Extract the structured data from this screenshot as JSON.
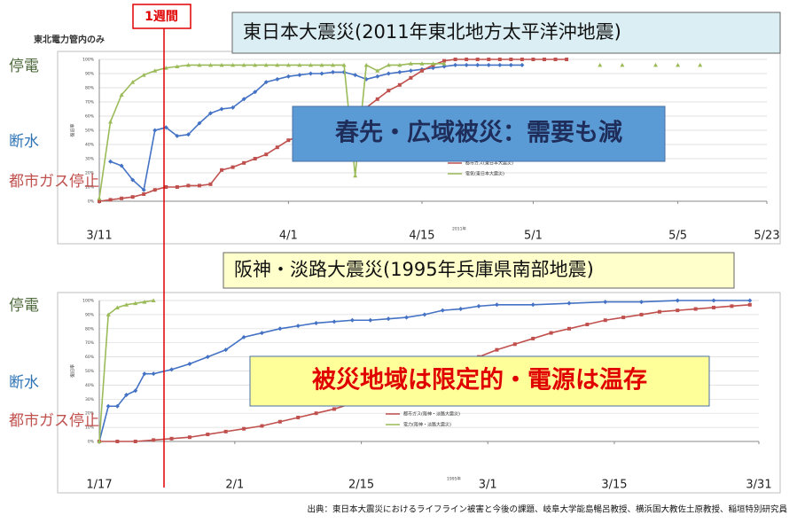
{
  "marker_label": "1週間",
  "source": "出典：東日本大震災におけるライフライン被害と今後の課題、岐阜大学能島暢呂教授、横浜国大教佐土原教授、稲垣特別研究員",
  "chart_data": [
    {
      "type": "line",
      "title": "東日本大震災(2011年東北地方太平洋沖地震)",
      "annotation": "春先・広域被災：需要も減",
      "note": "東北電力管内のみ",
      "side_labels": [
        {
          "text": "停電",
          "color": "#4f6a3c"
        },
        {
          "text": "断水",
          "color": "#2e74b5"
        },
        {
          "text": "都市ガス停止",
          "color": "#c0504d"
        }
      ],
      "x_label": "2011年",
      "y_label": "復旧率",
      "xlim": [
        0,
        60
      ],
      "xticks": [
        {
          "value": 0,
          "label": "3/11"
        },
        {
          "value": 17,
          "label": "4/1"
        },
        {
          "value": 29,
          "label": "4/15"
        },
        {
          "value": 39,
          "label": "5/1"
        },
        {
          "value": 52,
          "label": "5/5"
        },
        {
          "value": 60,
          "label": "5/23"
        }
      ],
      "ylim": [
        0,
        100
      ],
      "yticks": [
        {
          "value": 0,
          "label": "0%"
        },
        {
          "value": 10,
          "label": "10%"
        },
        {
          "value": 20,
          "label": "20%"
        },
        {
          "value": 30,
          "label": "30%"
        },
        {
          "value": 40,
          "label": "40%"
        },
        {
          "value": 50,
          "label": "50%"
        },
        {
          "value": 60,
          "label": "60%"
        },
        {
          "value": 70,
          "label": "70%"
        },
        {
          "value": 80,
          "label": "80%"
        },
        {
          "value": 90,
          "label": "90%"
        },
        {
          "value": 100,
          "label": "100%"
        }
      ],
      "grid": true,
      "series": [
        {
          "name": "水道(東日本大震災)",
          "color": "#4472c4",
          "marker": "diamond",
          "x": [
            1,
            2,
            3,
            4,
            5,
            6,
            7,
            8,
            9,
            10,
            11,
            12,
            13,
            14,
            15,
            16,
            17,
            18,
            19,
            20,
            21,
            22,
            23,
            24,
            25,
            26,
            27,
            28,
            29,
            30,
            31,
            32,
            33,
            34,
            35,
            36,
            37,
            38
          ],
          "values": [
            28,
            25,
            15,
            8,
            50,
            52,
            46,
            47,
            55,
            62,
            65,
            66,
            72,
            77,
            84,
            86,
            88,
            89,
            90,
            90,
            91,
            91,
            89,
            86,
            88,
            90,
            91,
            92,
            93,
            94,
            95,
            96,
            96,
            96,
            96,
            96,
            96,
            96
          ]
        },
        {
          "name": "都市ガス(東日本大震災)",
          "color": "#c0504d",
          "marker": "square",
          "x": [
            0,
            1,
            2,
            3,
            4,
            5,
            6,
            7,
            8,
            9,
            10,
            11,
            12,
            13,
            14,
            15,
            16,
            17,
            18,
            19,
            20,
            21,
            22,
            23,
            24,
            25,
            26,
            27,
            28,
            29,
            30,
            31,
            32,
            33,
            34,
            35,
            36,
            37,
            38,
            39,
            40,
            41,
            42
          ],
          "values": [
            0,
            1,
            2,
            3,
            5,
            8,
            10,
            10,
            11,
            11,
            12,
            22,
            24,
            27,
            30,
            33,
            38,
            43,
            46,
            49,
            52,
            55,
            58,
            62,
            66,
            72,
            78,
            82,
            87,
            92,
            96,
            99,
            100,
            100,
            100,
            100,
            100,
            100,
            100,
            100,
            100,
            100,
            100
          ]
        },
        {
          "name": "電気(東日本大震災)",
          "color": "#9bbb59",
          "marker": "triangle",
          "x": [
            0,
            1,
            2,
            3,
            4,
            5,
            6,
            7,
            8,
            9,
            10,
            11,
            12,
            13,
            14,
            15,
            16,
            17,
            18,
            19,
            20,
            21,
            22,
            23,
            24,
            25,
            26,
            27,
            28,
            29,
            30,
            31,
            32,
            45,
            46,
            47,
            48,
            50,
            51,
            52,
            53,
            54
          ],
          "values": [
            2,
            56,
            75,
            84,
            89,
            92,
            94,
            95,
            96,
            96,
            96,
            96,
            96,
            96,
            96,
            96,
            96,
            96,
            96,
            96,
            96,
            96,
            96,
            18,
            96,
            92,
            96,
            96,
            97,
            97,
            97,
            97,
            null,
            96,
            null,
            96,
            null,
            96,
            null,
            96,
            null,
            96
          ]
        }
      ]
    },
    {
      "type": "line",
      "title": "阪神・淡路大震災(1995年兵庫県南部地震)",
      "annotation": "被災地域は限定的・電源は温存",
      "side_labels": [
        {
          "text": "停電",
          "color": "#4f6a3c"
        },
        {
          "text": "断水",
          "color": "#2e74b5"
        },
        {
          "text": "都市ガス停止",
          "color": "#c0504d"
        }
      ],
      "x_label": "1995年",
      "y_label": "復旧率",
      "xlim": [
        0,
        73
      ],
      "xticks": [
        {
          "value": 0,
          "label": "1/17"
        },
        {
          "value": 15,
          "label": "2/1"
        },
        {
          "value": 29,
          "label": "2/15"
        },
        {
          "value": 43,
          "label": "3/1"
        },
        {
          "value": 57,
          "label": "3/15"
        },
        {
          "value": 73,
          "label": "3/31"
        }
      ],
      "ylim": [
        0,
        100
      ],
      "yticks": [
        {
          "value": 0,
          "label": "0%"
        },
        {
          "value": 10,
          "label": "10%"
        },
        {
          "value": 20,
          "label": "20%"
        },
        {
          "value": 30,
          "label": "30%"
        },
        {
          "value": 40,
          "label": "40%"
        },
        {
          "value": 50,
          "label": "50%"
        },
        {
          "value": 60,
          "label": "60%"
        },
        {
          "value": 70,
          "label": "70%"
        },
        {
          "value": 80,
          "label": "80%"
        },
        {
          "value": 90,
          "label": "90%"
        },
        {
          "value": 100,
          "label": "100%"
        }
      ],
      "grid": true,
      "series": [
        {
          "name": "水道(阪神・淡路大震災)",
          "color": "#4472c4",
          "marker": "diamond",
          "x": [
            0,
            1,
            2,
            3,
            4,
            5,
            6,
            8,
            10,
            12,
            14,
            16,
            18,
            20,
            22,
            24,
            26,
            28,
            30,
            32,
            34,
            36,
            38,
            40,
            42,
            44,
            48,
            52,
            56,
            60,
            64,
            68,
            72
          ],
          "values": [
            0,
            25,
            25,
            33,
            36,
            48,
            48,
            51,
            55,
            60,
            65,
            74,
            77,
            80,
            82,
            84,
            85,
            86,
            86,
            87,
            88,
            90,
            93,
            94,
            96,
            97,
            97,
            98,
            99,
            99,
            100,
            100,
            100
          ]
        },
        {
          "name": "都市ガス(阪神・淡路大震災)",
          "color": "#c0504d",
          "marker": "square",
          "x": [
            0,
            2,
            4,
            6,
            8,
            10,
            12,
            14,
            16,
            18,
            20,
            22,
            24,
            26,
            28,
            30,
            32,
            34,
            36,
            38,
            40,
            42,
            44,
            46,
            48,
            50,
            52,
            54,
            56,
            58,
            60,
            62,
            64,
            66,
            68,
            70,
            72
          ],
          "values": [
            0,
            0,
            0,
            1,
            2,
            3,
            5,
            7,
            9,
            11,
            14,
            17,
            20,
            23,
            27,
            31,
            36,
            41,
            46,
            50,
            55,
            60,
            65,
            69,
            73,
            77,
            80,
            83,
            86,
            88,
            90,
            92,
            93,
            94,
            95,
            96,
            97
          ]
        },
        {
          "name": "電力(阪神・淡路大震災)",
          "color": "#9bbb59",
          "marker": "triangle",
          "x": [
            0,
            1,
            2,
            3,
            4,
            5,
            6
          ],
          "values": [
            0,
            90,
            95,
            97,
            98,
            99,
            100
          ]
        }
      ]
    }
  ]
}
